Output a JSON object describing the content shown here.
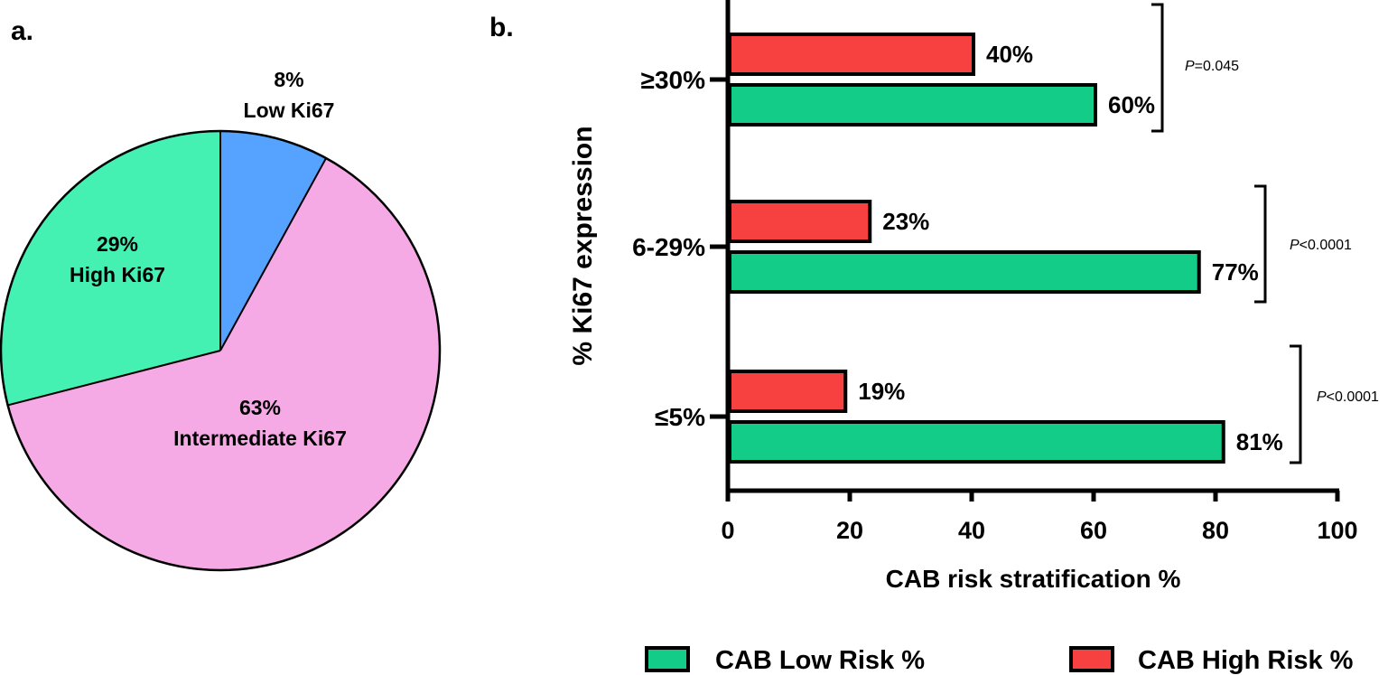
{
  "panel_a": {
    "label": "a."
  },
  "panel_b": {
    "label": "b."
  },
  "colors": {
    "pie_low": "#55A2FF",
    "pie_intermediate": "#F5AAE6",
    "pie_high": "#45F0B3",
    "bar_low_risk": "#12CC88",
    "bar_high_risk": "#F74141",
    "outline": "#000000"
  },
  "chart_data": [
    {
      "type": "pie",
      "slices": [
        {
          "name": "Low Ki67",
          "percent_label": "8%",
          "value": 8
        },
        {
          "name": "Intermediate Ki67",
          "percent_label": "63%",
          "value": 63
        },
        {
          "name": "High Ki67",
          "percent_label": "29%",
          "value": 29
        }
      ]
    },
    {
      "type": "bar",
      "orientation": "horizontal",
      "xlabel": "CAB risk stratification %",
      "ylabel": "% Ki67 expression",
      "xlim": [
        0,
        100
      ],
      "xticks": [
        "0",
        "20",
        "40",
        "60",
        "80",
        "100"
      ],
      "categories": [
        "≥30%",
        "6-29%",
        "≤5%"
      ],
      "series": [
        {
          "name": "CAB High Risk %",
          "values": [
            40,
            23,
            19
          ],
          "labels": [
            "40%",
            "23%",
            "19%"
          ]
        },
        {
          "name": "CAB Low Risk %",
          "values": [
            60,
            77,
            81
          ],
          "labels": [
            "60%",
            "77%",
            "81%"
          ]
        }
      ],
      "p_values": [
        {
          "p": "P",
          "rest": "=0.045"
        },
        {
          "p": "P",
          "rest": "<0.0001"
        },
        {
          "p": "P",
          "rest": "<0.0001"
        }
      ],
      "legend": [
        {
          "name": "CAB Low Risk %"
        },
        {
          "name": "CAB High Risk %"
        }
      ],
      "legend_position": "bottom"
    }
  ]
}
